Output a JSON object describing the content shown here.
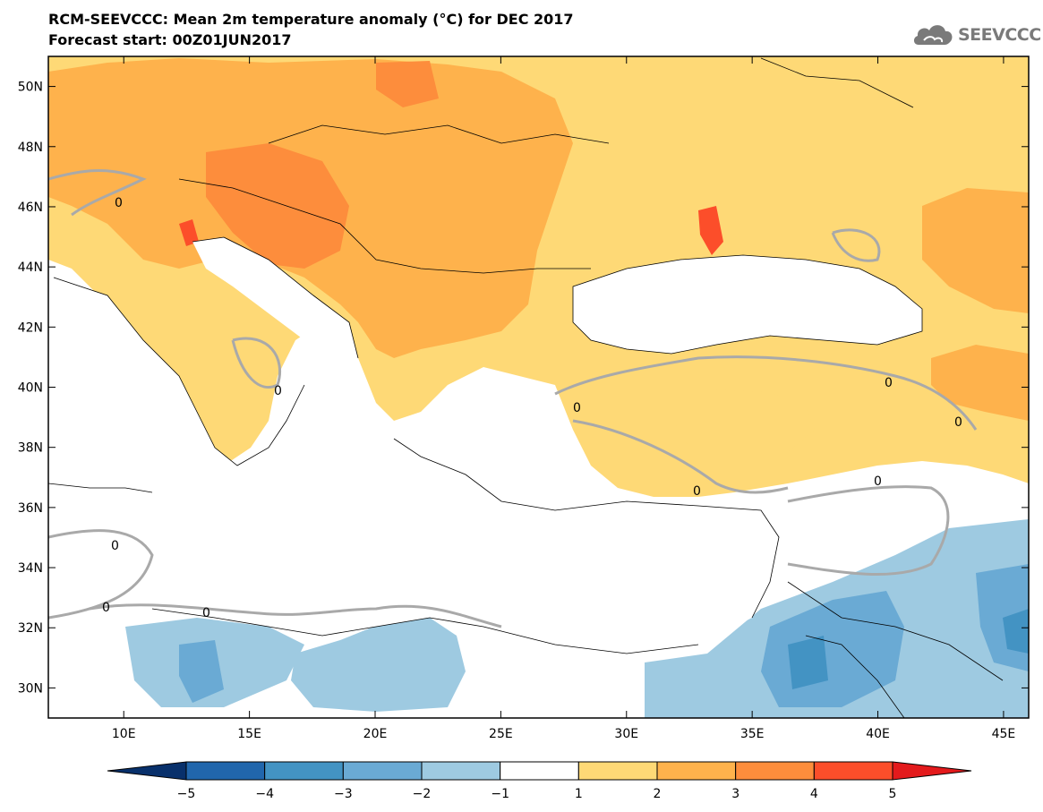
{
  "title": {
    "line1": "RCM-SEEVCCC: Mean 2m temperature anomaly (°C) for DEC 2017",
    "line2": "Forecast start: 00Z01JUN2017"
  },
  "logo": {
    "text": "SEEVCCC",
    "icon": "cloud-icon"
  },
  "map": {
    "lon_range": [
      7,
      46
    ],
    "lat_range": [
      29,
      51
    ],
    "lat_ticks": [
      "50N",
      "48N",
      "46N",
      "44N",
      "42N",
      "40N",
      "38N",
      "36N",
      "34N",
      "32N",
      "30N"
    ],
    "lat_values": [
      50,
      48,
      46,
      44,
      42,
      40,
      38,
      36,
      34,
      32,
      30
    ],
    "lon_ticks": [
      "10E",
      "15E",
      "20E",
      "25E",
      "30E",
      "35E",
      "40E",
      "45E"
    ],
    "lon_values": [
      10,
      15,
      20,
      25,
      30,
      35,
      40,
      45
    ],
    "contour_label": "0"
  },
  "colorbar": {
    "labels": [
      "−5",
      "−4",
      "−3",
      "−2",
      "−1",
      "1",
      "2",
      "3",
      "4",
      "5"
    ],
    "colors": [
      "#08306b",
      "#2166ac",
      "#4393c3",
      "#6aaad4",
      "#9ecae1",
      "#ffffff",
      "#fed976",
      "#feb24c",
      "#fd8d3c",
      "#fc4e2a",
      "#e31a1c"
    ]
  },
  "colors": {
    "level1": "#fed976",
    "level2": "#feb24c",
    "level3": "#fd8d3c",
    "level4": "#fc4e2a",
    "neg1": "#9ecae1",
    "neg2": "#6aaad4",
    "neg3": "#4393c3",
    "zero_contour": "#a9a9a9"
  }
}
